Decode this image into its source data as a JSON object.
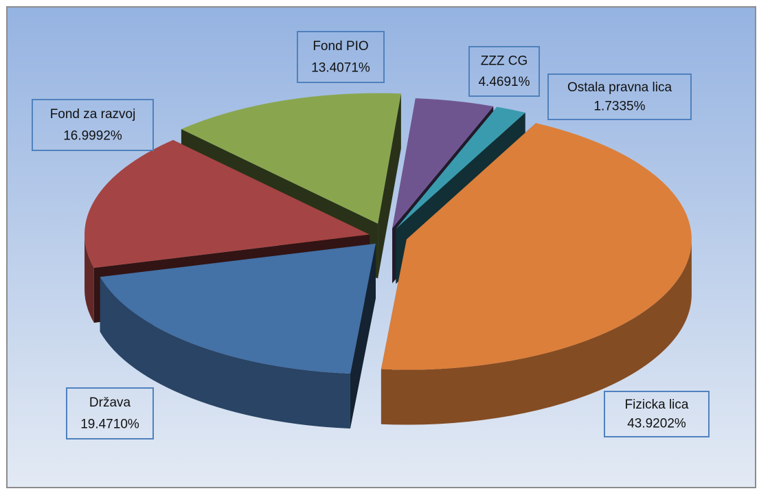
{
  "chart_data": {
    "type": "pie3d",
    "categories": [
      "Fizicka lica",
      "Država",
      "Fond za razvoj",
      "Fond PIO",
      "ZZZ CG",
      "Ostala pravna lica"
    ],
    "values": [
      43.9202,
      19.471,
      16.9992,
      13.4071,
      4.4691,
      1.7335
    ],
    "value_labels": [
      "43.9202%",
      "19.4710%",
      "16.9992%",
      "13.4071%",
      "4.4691%",
      "1.7335%"
    ],
    "colors": [
      "#dc7f3a",
      "#4471a6",
      "#a54444",
      "#89a64f",
      "#6f5590",
      "#3a9bae"
    ]
  }
}
